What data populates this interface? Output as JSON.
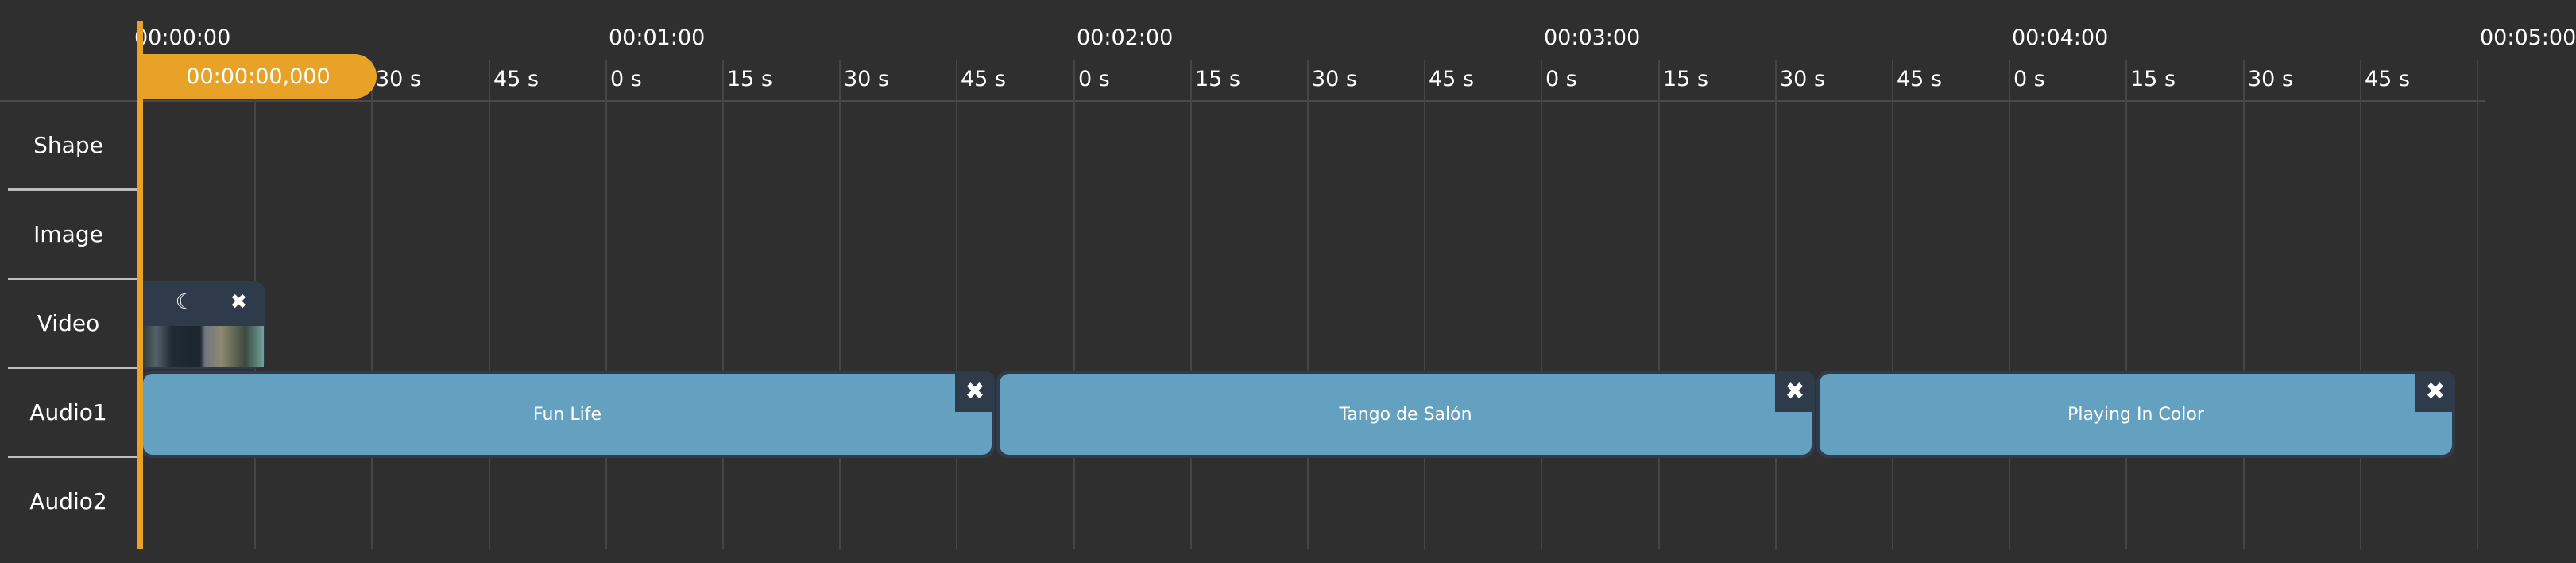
{
  "ruler": {
    "minute_labels": [
      "00:00:00",
      "00:01:00",
      "00:02:00",
      "00:03:00",
      "00:04:00",
      "00:05:00"
    ],
    "second_labels": [
      "30 s",
      "45 s",
      "0 s",
      "15 s",
      "30 s",
      "45 s",
      "0 s",
      "15 s",
      "30 s",
      "45 s",
      "0 s",
      "15 s",
      "30 s",
      "45 s",
      "0 s",
      "15 s",
      "30 s",
      "45 s"
    ]
  },
  "playhead": {
    "time": "00:00:00,000",
    "color": "#e8a228"
  },
  "tracks": [
    {
      "label": "Shape"
    },
    {
      "label": "Image"
    },
    {
      "label": "Video"
    },
    {
      "label": "Audio1"
    },
    {
      "label": "Audio2"
    }
  ],
  "video_clip": {
    "icons": [
      "moon-icon",
      "close-icon"
    ],
    "moon": "☾",
    "close": "✖"
  },
  "audio_clips": [
    {
      "title": "Fun Life",
      "close": "✖"
    },
    {
      "title": "Tango de Salón",
      "close": "✖"
    },
    {
      "title": "Playing In Color",
      "close": "✖"
    }
  ],
  "colors": {
    "background": "#2f2f2f",
    "audio_clip": "#64a0bf",
    "clip_frame": "#2f3b4a"
  }
}
